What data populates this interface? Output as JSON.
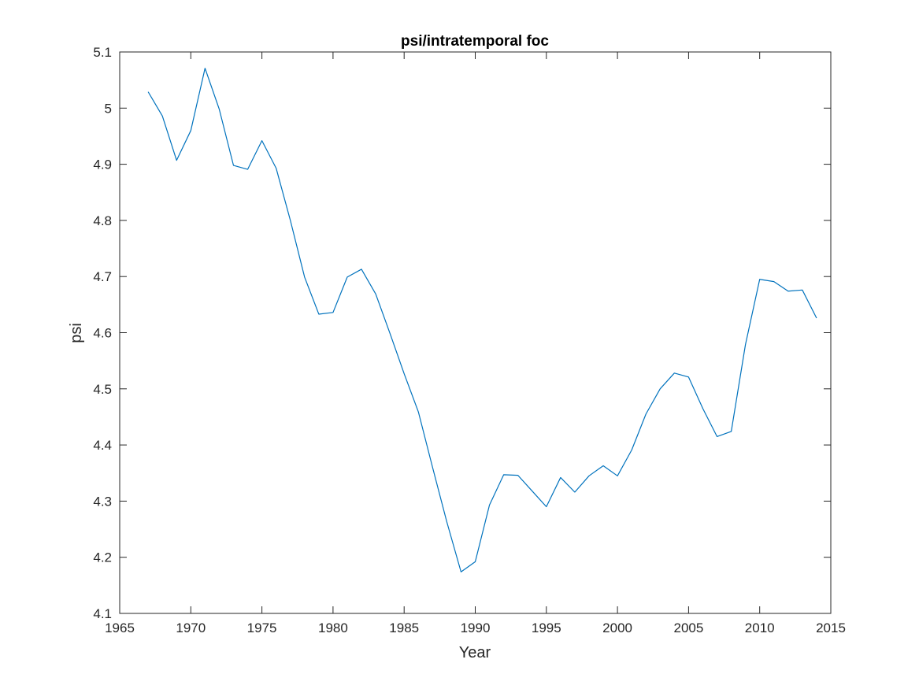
{
  "chart_data": {
    "type": "line",
    "title": "psi/intratemporal foc",
    "xlabel": "Year",
    "ylabel": "psi",
    "xlim": [
      1965,
      2015
    ],
    "ylim": [
      4.1,
      5.1
    ],
    "xticks": [
      "1965",
      "1970",
      "1975",
      "1980",
      "1985",
      "1990",
      "1995",
      "2000",
      "2005",
      "2010",
      "2015"
    ],
    "yticks": [
      "4.1",
      "4.2",
      "4.3",
      "4.4",
      "4.5",
      "4.6",
      "4.7",
      "4.8",
      "4.9",
      "5",
      "5.1"
    ],
    "grid": false,
    "series": [
      {
        "color": "#0072bd",
        "x": [
          1967,
          1968,
          1969,
          1970,
          1971,
          1972,
          1973,
          1974,
          1975,
          1976,
          1977,
          1978,
          1979,
          1980,
          1981,
          1982,
          1983,
          1984,
          1985,
          1986,
          1987,
          1988,
          1989,
          1990,
          1991,
          1992,
          1993,
          1994,
          1995,
          1996,
          1997,
          1998,
          1999,
          2000,
          2001,
          2002,
          2003,
          2004,
          2005,
          2006,
          2007,
          2008,
          2009,
          2010,
          2011,
          2012,
          2013,
          2014
        ],
        "y": [
          5.029,
          4.986,
          4.907,
          4.96,
          5.071,
          4.998,
          4.898,
          4.891,
          4.942,
          4.893,
          4.8,
          4.699,
          4.633,
          4.636,
          4.699,
          4.713,
          4.669,
          4.599,
          4.527,
          4.459,
          4.36,
          4.263,
          4.174,
          4.192,
          4.293,
          4.347,
          4.346,
          4.318,
          4.29,
          4.342,
          4.316,
          4.345,
          4.363,
          4.345,
          4.391,
          4.455,
          4.5,
          4.528,
          4.521,
          4.465,
          4.415,
          4.424,
          4.579,
          4.695,
          4.691,
          4.674,
          4.676,
          4.626
        ]
      }
    ]
  }
}
